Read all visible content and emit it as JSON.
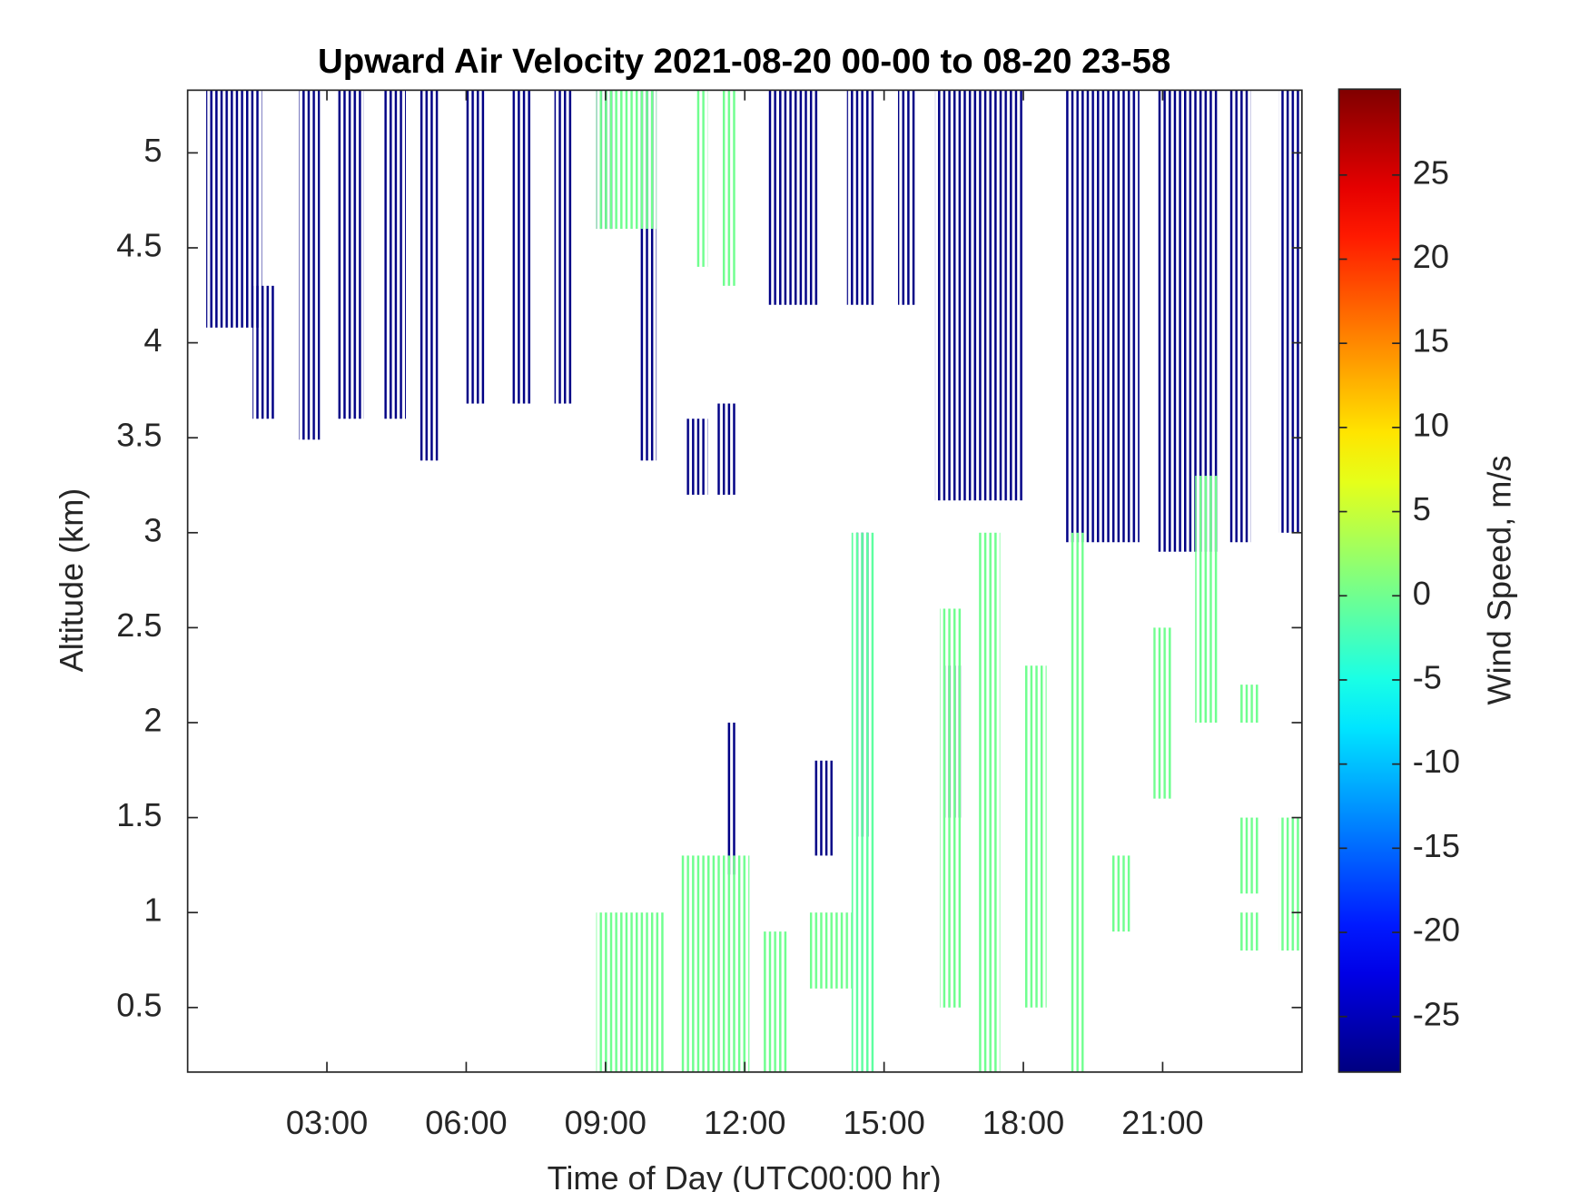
{
  "chart_data": {
    "type": "heatmap",
    "title": "Upward Air Velocity 2021-08-20 00-00 to 08-20 23-58",
    "x_label": "Time of Day (UTC00:00 hr)",
    "y_label": "Altitude (km)",
    "colorbar_label": "Wind Speed, m/s",
    "colormap": "jet",
    "xlim": [
      0,
      24
    ],
    "xticks": [
      {
        "value": 3,
        "label": "03:00"
      },
      {
        "value": 6,
        "label": "06:00"
      },
      {
        "value": 9,
        "label": "09:00"
      },
      {
        "value": 12,
        "label": "12:00"
      },
      {
        "value": 15,
        "label": "15:00"
      },
      {
        "value": 18,
        "label": "18:00"
      },
      {
        "value": 21,
        "label": "21:00"
      }
    ],
    "ylim": [
      0.16,
      5.33
    ],
    "yticks": [
      0.5,
      1,
      1.5,
      2,
      2.5,
      3,
      3.5,
      4,
      4.5,
      5
    ],
    "clim": [
      -28.3,
      30.1
    ],
    "cticks": [
      -25,
      -20,
      -15,
      -10,
      -5,
      0,
      5,
      10,
      15,
      20,
      25
    ],
    "cells": {
      "x0": [
        0.4,
        1.4,
        2.4,
        3.2,
        4.2,
        5.0,
        6.0,
        7.0,
        7.9,
        8.8,
        9.75,
        10.7,
        11.4,
        11.6,
        13.5,
        12.5,
        14.4,
        14.2,
        15.3,
        16.3,
        16.1,
        18.9,
        20.9,
        22.4,
        23.5,
        8.8,
        10.96,
        11.5,
        8.8,
        10.6,
        12.4,
        13.4,
        14.3,
        16.2,
        17.0,
        18.0,
        19.0,
        19.9,
        20.8,
        21.7,
        22.65,
        22.65,
        23.5,
        22.65
      ],
      "x1": [
        1.6,
        1.9,
        2.85,
        3.8,
        4.7,
        5.4,
        6.4,
        7.4,
        8.3,
        9.2,
        10.1,
        11.2,
        11.8,
        11.8,
        13.9,
        13.6,
        14.7,
        14.8,
        15.7,
        16.7,
        18.0,
        20.5,
        22.2,
        22.9,
        24.0,
        10.1,
        11.2,
        11.8,
        10.3,
        12.1,
        12.95,
        14.3,
        14.8,
        16.7,
        17.5,
        18.5,
        19.3,
        20.3,
        21.2,
        22.2,
        23.1,
        23.1,
        24.0,
        23.1
      ],
      "y0": [
        4.08,
        3.6,
        3.49,
        3.6,
        3.6,
        3.38,
        3.68,
        3.68,
        3.68,
        4.6,
        3.38,
        3.2,
        3.2,
        1.2,
        1.3,
        4.2,
        1.4,
        4.2,
        4.2,
        1.5,
        3.17,
        2.95,
        2.9,
        2.95,
        3.0,
        4.6,
        4.4,
        4.3,
        0.16,
        0.16,
        0.16,
        0.6,
        0.16,
        0.5,
        0.16,
        0.5,
        0.16,
        0.9,
        1.6,
        2.0,
        1.1,
        2.0,
        0.8,
        0.8
      ],
      "y1": [
        5.33,
        4.3,
        5.33,
        5.33,
        5.33,
        5.33,
        5.33,
        5.33,
        5.33,
        5.33,
        5.33,
        3.6,
        3.68,
        2.0,
        1.8,
        5.33,
        3.0,
        5.33,
        5.33,
        2.3,
        5.33,
        5.33,
        5.33,
        5.33,
        5.33,
        5.33,
        5.33,
        5.33,
        1.0,
        1.3,
        0.9,
        1.0,
        3.0,
        2.6,
        3.0,
        2.3,
        3.0,
        1.3,
        2.5,
        3.3,
        1.5,
        2.2,
        1.5,
        1.0
      ],
      "values": [
        -28,
        -28,
        -28,
        -28,
        -28,
        -28,
        -28,
        -28,
        -28,
        -28,
        -28,
        -28,
        -28,
        -28,
        -28,
        -28,
        -28,
        -28,
        -28,
        -28,
        -28,
        -28,
        -28,
        -28,
        -28,
        0,
        0,
        0,
        0,
        0,
        0,
        0,
        -1,
        0,
        0,
        0,
        0,
        0,
        0,
        0,
        0,
        0,
        0,
        0
      ]
    }
  }
}
